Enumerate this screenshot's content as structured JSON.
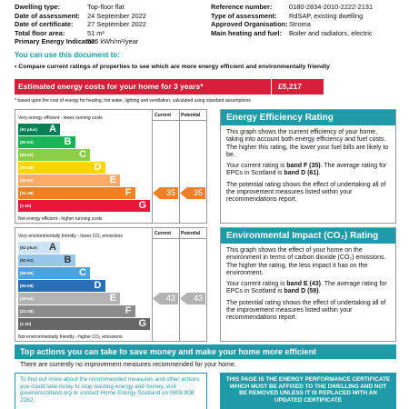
{
  "header": {
    "left": [
      {
        "label": "Dwelling type:",
        "value": "Top-floor flat"
      },
      {
        "label": "Date of assessment:",
        "value": "24 September 2022"
      },
      {
        "label": "Date of certificate:",
        "value": "27 September 2022"
      },
      {
        "label": "Total floor area:",
        "value": "51 m²"
      },
      {
        "label": "Primary Energy Indicator:",
        "value": "536 kWh/m²/year"
      }
    ],
    "right": [
      {
        "label": "Reference number:",
        "value": "0180-2834-2010-2222-2131"
      },
      {
        "label": "Type of assessment:",
        "value": "RdSAP, existing dwelling"
      },
      {
        "label": "Approved Organisation:",
        "value": "Stroma"
      },
      {
        "label": "Main heating and fuel:",
        "value": "Boiler and radiators, electric"
      }
    ]
  },
  "intro": {
    "heading": "You can use this document to:",
    "bullet": "Compare current ratings of properties to see which are more energy efficient and environmentally friendly"
  },
  "costs": {
    "label": "Estimated energy costs for your home for 3 years*",
    "amount": "£5,217",
    "note": "* based upon the cost of energy for heating, hot water, lighting and ventilation, calculated using standard assumptions"
  },
  "efficiency": {
    "chart": {
      "top": "Very energy efficient - lower running costs",
      "bottom": "Not energy efficient - higher running costs",
      "col_current": "Current",
      "col_potential": "Potential",
      "bands": [
        {
          "range": "(92 plus)",
          "letter": "A"
        },
        {
          "range": "(81-91)",
          "letter": "B"
        },
        {
          "range": "(69-80)",
          "letter": "C"
        },
        {
          "range": "(55-68)",
          "letter": "D"
        },
        {
          "range": "(39-54)",
          "letter": "E"
        },
        {
          "range": "(21-38)",
          "letter": "F"
        },
        {
          "range": "(1-20)",
          "letter": "G"
        }
      ],
      "current": 35,
      "potential": 35
    },
    "info": {
      "title": "Energy Efficiency Rating",
      "p1": "This graph shows the current efficiency of your home, taking into account both energy efficiency and fuel costs. The higher this rating, the lower your fuel bills are likely to be.",
      "p2": {
        "before": "Your current rating is ",
        "current": "band F (35)",
        "middle": ". The average rating for EPCs in Scotland is ",
        "average": "band D (61)",
        "after": "."
      },
      "p3": "The potential rating shows the effect of undertaking all of the improvement measures listed within your recommendations report."
    }
  },
  "environment": {
    "chart": {
      "top": "Very environmentally friendly - lower CO₂ emissions",
      "bottom": "Not environmentally friendly - higher CO₂ emissions",
      "col_current": "Current",
      "col_potential": "Potential",
      "bands": [
        {
          "range": "(92 plus)",
          "letter": "A"
        },
        {
          "range": "(81-91)",
          "letter": "B"
        },
        {
          "range": "(69-80)",
          "letter": "C"
        },
        {
          "range": "(55-68)",
          "letter": "D"
        },
        {
          "range": "(39-54)",
          "letter": "E"
        },
        {
          "range": "(21-38)",
          "letter": "F"
        },
        {
          "range": "(1-20)",
          "letter": "G"
        }
      ],
      "current": 43,
      "potential": 43
    },
    "info": {
      "title": "Environmental Impact (CO₂) Rating",
      "p1": "This graph shows the effect of your home on the environment in terms of carbon dioxide (CO₂) emissions. The higher the rating, the less impact it has on the environment.",
      "p2": {
        "before": "Your current rating is ",
        "current": "band E (43)",
        "middle": ". The average rating for EPCs in Scotland is ",
        "average": "band D (59)",
        "after": "."
      },
      "p3": "The potential rating shows the effect of undertaking all of the improvement measures listed within your recommendations report."
    }
  },
  "actions": {
    "title": "Top actions you can take to save money and make your home more efficient",
    "text": "There are currently no improvement measures recommended for your home."
  },
  "footer": {
    "left": "To find out more about the recommended measures and other actions you could take today to stop wasting energy and money, visit greenerscotland.org or contact Home Energy Scotland on 0808 808 2282.",
    "right": "THIS PAGE IS THE ENERGY PERFORMANCE CERTIFICATE WHICH MUST BE AFFIXED TO THE DWELLING AND NOT BE REMOVED UNLESS IT IS REPLACED WITH AN UPDATED CERTIFICATE"
  }
}
